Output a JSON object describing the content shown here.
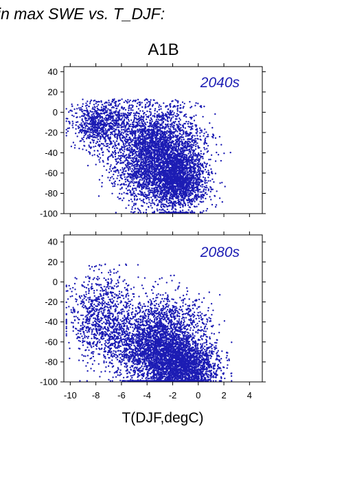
{
  "figure": {
    "heading": "in max SWE vs. T_DJF:",
    "scenario": "A1B",
    "xlabel": "T(DJF,degC)",
    "point_color": "#1c1cb4"
  },
  "chart_data": [
    {
      "type": "scatter",
      "annotation": "2040s",
      "xlim": [
        -10.5,
        5
      ],
      "ylim": [
        -100,
        45
      ],
      "xticks": [
        -10,
        -8,
        -6,
        -4,
        -2,
        0,
        2,
        4
      ],
      "yticks": [
        -100,
        -80,
        -60,
        -40,
        -20,
        0,
        20,
        40
      ],
      "grid": false,
      "x_tick_labels_shown": false,
      "point_count": 6000,
      "clusters": [
        {
          "x_mean": -3.2,
          "x_sd": 1.7,
          "y_mean": -42,
          "y_sd": 24,
          "weight": 0.6
        },
        {
          "x_mean": -1.5,
          "x_sd": 1.1,
          "y_mean": -68,
          "y_sd": 15,
          "weight": 0.25
        },
        {
          "x_mean": -7.5,
          "x_sd": 1.2,
          "y_mean": -12,
          "y_sd": 12,
          "weight": 0.15
        }
      ],
      "x_range": [
        -10.3,
        2.6
      ],
      "y_range": [
        -99,
        13
      ]
    },
    {
      "type": "scatter",
      "annotation": "2080s",
      "xlim": [
        -10.5,
        5
      ],
      "ylim": [
        -100,
        47
      ],
      "xticks": [
        -10,
        -8,
        -6,
        -4,
        -2,
        0,
        2,
        4
      ],
      "xtick_labels": [
        "-10",
        "-8",
        "-6",
        "-4",
        "-2",
        "0",
        "2",
        "4"
      ],
      "yticks": [
        -100,
        -80,
        -60,
        -40,
        -20,
        0,
        20,
        40
      ],
      "grid": false,
      "point_count": 6000,
      "clusters": [
        {
          "x_mean": -3.0,
          "x_sd": 1.8,
          "y_mean": -65,
          "y_sd": 22,
          "weight": 0.6
        },
        {
          "x_mean": -1.0,
          "x_sd": 1.2,
          "y_mean": -85,
          "y_sd": 10,
          "weight": 0.25
        },
        {
          "x_mean": -7.5,
          "x_sd": 1.3,
          "y_mean": -35,
          "y_sd": 22,
          "weight": 0.15
        }
      ],
      "x_range": [
        -10.3,
        2.6
      ],
      "y_range": [
        -99,
        18
      ]
    }
  ]
}
